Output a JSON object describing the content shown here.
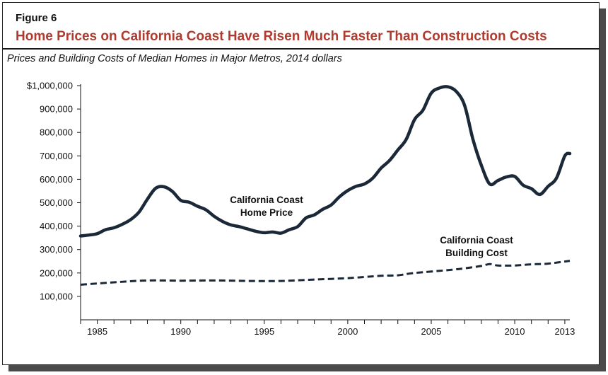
{
  "figure": {
    "label": "Figure 6",
    "title": "Home Prices on California Coast Have Risen Much Faster Than Construction Costs",
    "subtitle": "Prices and Building Costs of Median Homes in Major Metros, 2014 dollars"
  },
  "colors": {
    "title": "#b03a2e",
    "series": "#1b2838"
  },
  "chart_data": {
    "type": "line",
    "title": "Home Prices on California Coast Have Risen Much Faster Than Construction Costs",
    "subtitle": "Prices and Building Costs of Median Homes in Major Metros, 2014 dollars",
    "xlabel": "",
    "ylabel": "",
    "xlim": [
      1984,
      2013.3
    ],
    "ylim": [
      0,
      1000000
    ],
    "y_ticks": [
      100000,
      200000,
      300000,
      400000,
      500000,
      600000,
      700000,
      800000,
      900000,
      1000000
    ],
    "y_tick_labels": [
      "100,000",
      "200,000",
      "300,000",
      "400,000",
      "500,000",
      "600,000",
      "700,000",
      "800,000",
      "900,000",
      "$1,000,000"
    ],
    "x_ticks": [
      1985,
      1990,
      1995,
      2000,
      2005,
      2010,
      2013
    ],
    "x_tick_labels": [
      "1985",
      "1990",
      "1995",
      "2000",
      "2005",
      "2010",
      "2013"
    ],
    "grid": false,
    "legend": "none",
    "series": [
      {
        "name": "California Coast Home Price",
        "label_line1": "California Coast",
        "label_line2": "Home Price",
        "style": "solid",
        "color": "#1b2838",
        "x": [
          1984.0,
          1984.5,
          1985.0,
          1985.5,
          1986.0,
          1986.5,
          1987.0,
          1987.5,
          1988.0,
          1988.5,
          1989.0,
          1989.5,
          1990.0,
          1990.5,
          1991.0,
          1991.5,
          1992.0,
          1992.5,
          1993.0,
          1993.5,
          1994.0,
          1994.5,
          1995.0,
          1995.5,
          1996.0,
          1996.5,
          1997.0,
          1997.5,
          1998.0,
          1998.5,
          1999.0,
          1999.5,
          2000.0,
          2000.5,
          2001.0,
          2001.5,
          2002.0,
          2002.5,
          2003.0,
          2003.5,
          2004.0,
          2004.5,
          2005.0,
          2005.5,
          2006.0,
          2006.5,
          2007.0,
          2007.5,
          2008.0,
          2008.5,
          2009.0,
          2009.5,
          2010.0,
          2010.5,
          2011.0,
          2011.5,
          2012.0,
          2012.5,
          2013.0,
          2013.3
        ],
        "values": [
          358000,
          362000,
          368000,
          385000,
          393000,
          408000,
          428000,
          460000,
          515000,
          562000,
          568000,
          548000,
          510000,
          502000,
          485000,
          470000,
          442000,
          420000,
          405000,
          398000,
          388000,
          378000,
          372000,
          375000,
          370000,
          385000,
          398000,
          435000,
          448000,
          472000,
          490000,
          525000,
          552000,
          570000,
          580000,
          605000,
          648000,
          680000,
          725000,
          770000,
          855000,
          895000,
          968000,
          990000,
          995000,
          975000,
          915000,
          770000,
          660000,
          580000,
          595000,
          610000,
          612000,
          575000,
          560000,
          535000,
          570000,
          605000,
          700000,
          710000
        ]
      },
      {
        "name": "California Coast Building Cost",
        "label_line1": "California Coast",
        "label_line2": "Building Cost",
        "style": "dashed",
        "color": "#1b2838",
        "x": [
          1984.0,
          1986.0,
          1988.0,
          1990.0,
          1992.0,
          1994.0,
          1996.0,
          1998.0,
          2000.0,
          2002.0,
          2003.0,
          2004.0,
          2006.0,
          2007.0,
          2008.0,
          2008.5,
          2009.0,
          2010.0,
          2011.0,
          2012.0,
          2013.3
        ],
        "values": [
          150000,
          160000,
          168000,
          167000,
          168000,
          166000,
          166000,
          172000,
          178000,
          188000,
          190000,
          200000,
          212000,
          220000,
          230000,
          238000,
          232000,
          232000,
          237000,
          240000,
          252000
        ]
      }
    ]
  }
}
